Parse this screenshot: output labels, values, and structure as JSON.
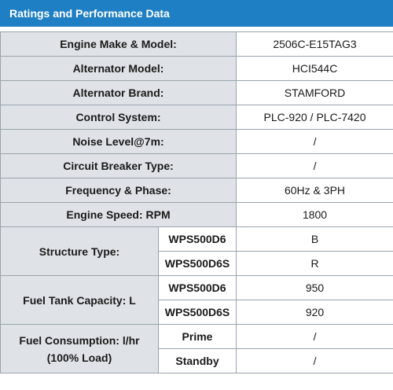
{
  "header": {
    "title": "Ratings and Performance Data"
  },
  "simple_rows": [
    {
      "label": "Engine Make & Model:",
      "value": "2506C-E15TAG3"
    },
    {
      "label": "Alternator Model:",
      "value": "HCI544C"
    },
    {
      "label": "Alternator Brand:",
      "value": "STAMFORD"
    },
    {
      "label": "Control System:",
      "value": "PLC-920 / PLC-7420"
    },
    {
      "label": "Noise Level@7m:",
      "value": "/"
    },
    {
      "label": "Circuit Breaker Type:",
      "value": "/"
    },
    {
      "label": "Frequency & Phase:",
      "value": "60Hz & 3PH"
    },
    {
      "label": "Engine Speed: RPM",
      "value": "1800"
    }
  ],
  "structure": {
    "label": "Structure Type:",
    "rows": [
      {
        "sub": "WPS500D6",
        "value": "B"
      },
      {
        "sub": "WPS500D6S",
        "value": "R"
      }
    ]
  },
  "fuel_tank": {
    "label": "Fuel Tank Capacity: L",
    "rows": [
      {
        "sub": "WPS500D6",
        "value": "950"
      },
      {
        "sub": "WPS500D6S",
        "value": "920"
      }
    ]
  },
  "fuel_consumption": {
    "label_line1": "Fuel Consumption: l/hr",
    "label_line2": "(100% Load)",
    "rows": [
      {
        "sub": "Prime",
        "value": "/"
      },
      {
        "sub": "Standby",
        "value": "/"
      }
    ]
  }
}
